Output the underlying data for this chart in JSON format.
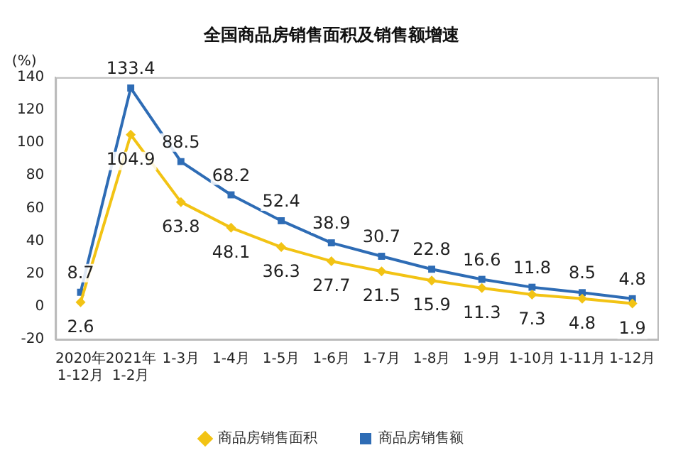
{
  "chart_data": {
    "type": "line",
    "title": "全国商品房销售面积及销售额增速",
    "ylabel": "(%)",
    "categories": [
      "2020年\n1-12月",
      "2021年\n1-2月",
      "1-3月",
      "1-4月",
      "1-5月",
      "1-6月",
      "1-7月",
      "1-8月",
      "1-9月",
      "1-10月",
      "1-11月",
      "1-12月"
    ],
    "series": [
      {
        "name": "商品房销售面积",
        "color": "#f2c314",
        "marker": "diamond",
        "values": [
          2.6,
          104.9,
          63.8,
          48.1,
          36.3,
          27.7,
          21.5,
          15.9,
          11.3,
          7.3,
          4.8,
          1.9
        ]
      },
      {
        "name": "商品房销售额",
        "color": "#2e6cb5",
        "marker": "square",
        "values": [
          8.7,
          133.4,
          88.5,
          68.2,
          52.4,
          38.9,
          30.7,
          22.8,
          16.6,
          11.8,
          8.5,
          4.8
        ]
      }
    ],
    "ylim": [
      -20,
      140
    ],
    "yticks": [
      -20,
      0,
      20,
      40,
      60,
      80,
      100,
      120,
      140
    ],
    "grid": false,
    "legend": "bottom",
    "data_labels": true,
    "line_style": "solid"
  }
}
